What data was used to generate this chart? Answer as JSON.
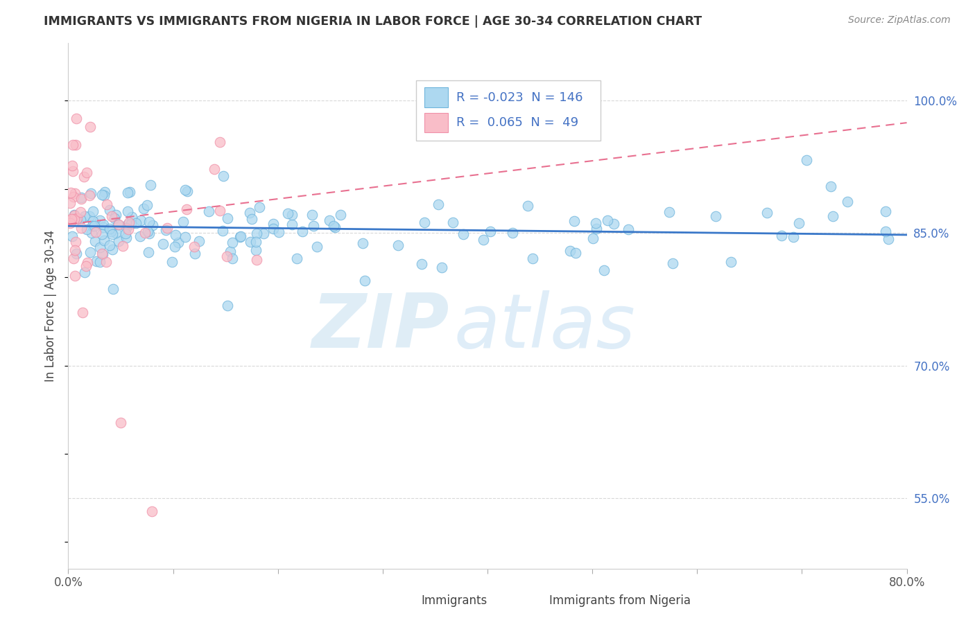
{
  "title": "IMMIGRANTS VS IMMIGRANTS FROM NIGERIA IN LABOR FORCE | AGE 30-34 CORRELATION CHART",
  "source": "Source: ZipAtlas.com",
  "ylabel": "In Labor Force | Age 30-34",
  "xlim": [
    0.0,
    0.8
  ],
  "ylim": [
    0.47,
    1.065
  ],
  "ytick_right_labels": [
    "55.0%",
    "70.0%",
    "85.0%",
    "100.0%"
  ],
  "ytick_right_vals": [
    0.55,
    0.7,
    0.85,
    1.0
  ],
  "legend_r_blue": "-0.023",
  "legend_n_blue": "146",
  "legend_r_pink": "0.065",
  "legend_n_pink": "49",
  "blue_color": "#ADD8F0",
  "pink_color": "#F9BDC8",
  "blue_edge_color": "#6EB4DC",
  "pink_edge_color": "#F090A8",
  "trend_blue_color": "#3A78C9",
  "trend_pink_color": "#E87090",
  "watermark_zip": "ZIP",
  "watermark_atlas": "atlas",
  "background_color": "#ffffff",
  "grid_color": "#d8d8d8",
  "legend_text_color": "#4472C4",
  "title_color": "#333333",
  "source_color": "#888888"
}
